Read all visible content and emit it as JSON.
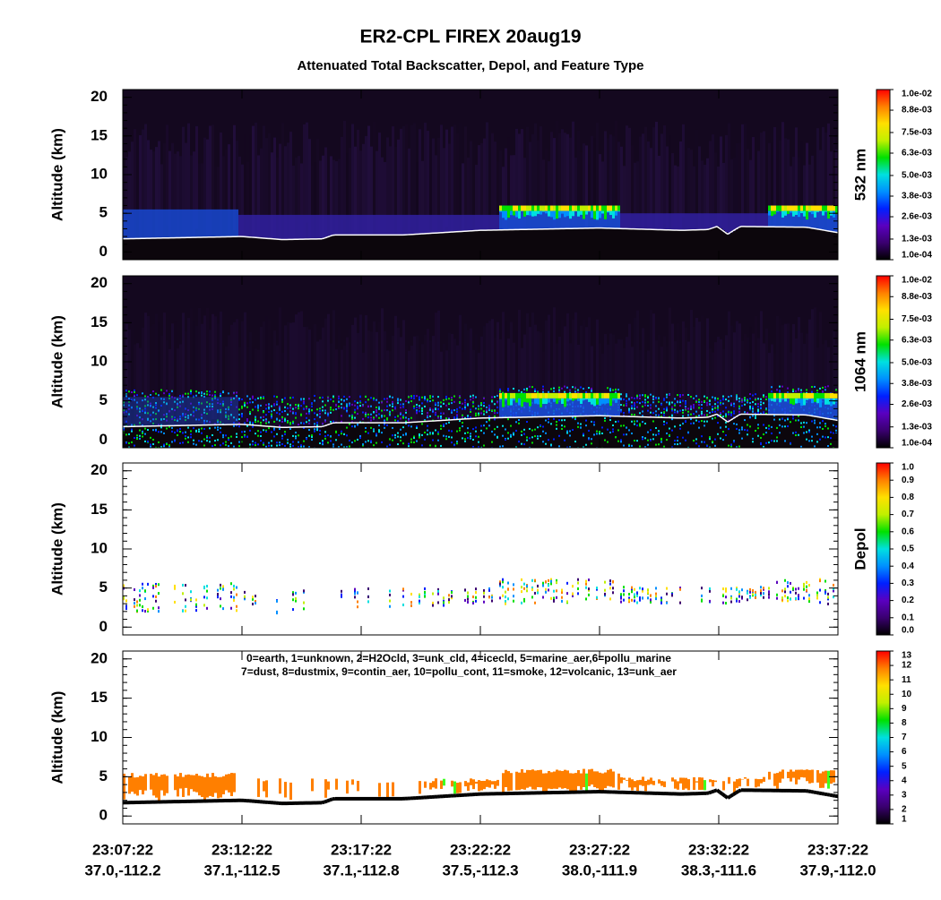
{
  "title": "ER2-CPL FIREX 20aug19",
  "subtitle": "Attenuated Total Backscatter, Depol, and Feature Type",
  "x_axis": {
    "times": [
      "23:07:22",
      "23:12:22",
      "23:17:22",
      "23:22:22",
      "23:27:22",
      "23:32:22",
      "23:37:22"
    ],
    "locations": [
      "37.0,-112.2",
      "37.1,-112.5",
      "37.1,-112.8",
      "37.5,-112.3",
      "38.0,-111.9",
      "38.3,-111.6",
      "37.9,-112.0"
    ]
  },
  "colormap": [
    "#000000",
    "#3a0070",
    "#5a00c0",
    "#0020ff",
    "#0090ff",
    "#00e0e0",
    "#00e000",
    "#c0f000",
    "#ffe000",
    "#ff8000",
    "#ff0000"
  ],
  "chart_data": [
    {
      "type": "curtain",
      "ylabel": "Altitude (km)",
      "ylim": [
        -1,
        21
      ],
      "yticks": [
        0,
        5,
        10,
        15,
        20
      ],
      "colorbar_label": "532 nm",
      "clim": [
        0.0001,
        0.01
      ],
      "cticks": [
        {
          "value": 0.0001,
          "label": "1.0e-04"
        },
        {
          "value": 0.0013,
          "label": "1.3e-03"
        },
        {
          "value": 0.0026,
          "label": "2.6e-03"
        },
        {
          "value": 0.0038,
          "label": "3.8e-03"
        },
        {
          "value": 0.005,
          "label": "5.0e-03"
        },
        {
          "value": 0.0063,
          "label": "6.3e-03"
        },
        {
          "value": 0.0075,
          "label": "7.5e-03"
        },
        {
          "value": 0.0088,
          "label": "8.8e-03"
        },
        {
          "value": 0.01,
          "label": "1.0e-02"
        }
      ]
    },
    {
      "type": "curtain",
      "ylabel": "Altitude (km)",
      "ylim": [
        -1,
        21
      ],
      "yticks": [
        0,
        5,
        10,
        15,
        20
      ],
      "colorbar_label": "1064 nm",
      "clim": [
        0.0001,
        0.01
      ],
      "cticks": [
        {
          "value": 0.0001,
          "label": "1.0e-04"
        },
        {
          "value": 0.0013,
          "label": "1.3e-03"
        },
        {
          "value": 0.0026,
          "label": "2.6e-03"
        },
        {
          "value": 0.0038,
          "label": "3.8e-03"
        },
        {
          "value": 0.005,
          "label": "5.0e-03"
        },
        {
          "value": 0.0063,
          "label": "6.3e-03"
        },
        {
          "value": 0.0075,
          "label": "7.5e-03"
        },
        {
          "value": 0.0088,
          "label": "8.8e-03"
        },
        {
          "value": 0.01,
          "label": "1.0e-02"
        }
      ]
    },
    {
      "type": "depol",
      "ylabel": "Altitude (km)",
      "ylim": [
        -1,
        21
      ],
      "yticks": [
        0,
        5,
        10,
        15,
        20
      ],
      "colorbar_label": "Depol",
      "clim": [
        0,
        1
      ],
      "cticks": [
        {
          "value": 0,
          "label": "0.0"
        },
        0.1,
        0.2,
        0.3,
        0.4,
        0.5,
        0.6,
        0.7,
        0.8,
        0.9,
        {
          "value": 1,
          "label": "1.0"
        }
      ]
    },
    {
      "type": "feature",
      "ylabel": "Altitude (km)",
      "ylim": [
        -1,
        21
      ],
      "yticks": [
        0,
        5,
        10,
        15,
        20
      ],
      "legend_text": [
        "0=earth, 1=unknown, 2=H2Ocld, 3=unk_cld, 4=icecld, 5=marine_aer,6=pollu_marine",
        "7=dust, 8=dustmix, 9=contin_aer, 10=pollu_cont, 11=smoke, 12=volcanic, 13=unk_aer"
      ],
      "clim": [
        1,
        13
      ],
      "cticks": [
        1,
        2,
        3,
        4,
        5,
        6,
        7,
        8,
        9,
        10,
        11,
        12,
        13
      ]
    }
  ]
}
